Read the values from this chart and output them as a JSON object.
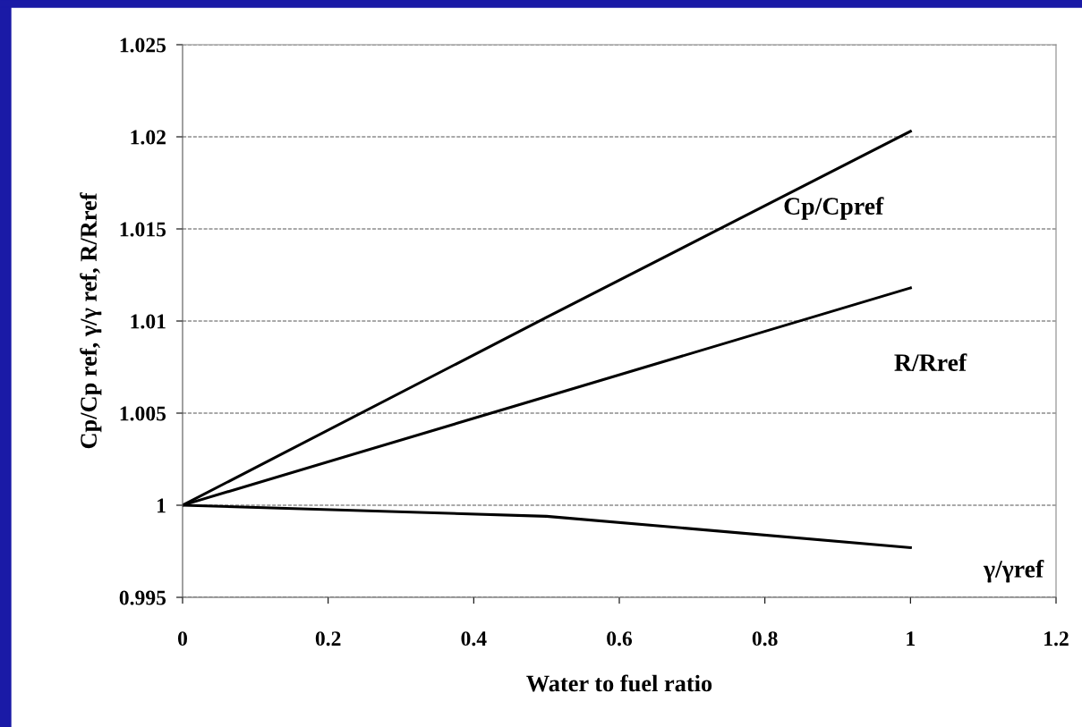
{
  "chart_data": {
    "type": "line",
    "xlabel": "Water to fuel ratio",
    "ylabel": "Cp/Cp ref, γ/γ ref, R/Rref",
    "x": [
      0,
      0.5,
      1
    ],
    "series": [
      {
        "name": "Cp/Cpref",
        "color": "#000000",
        "values": [
          1,
          1.0102,
          1.0203
        ]
      },
      {
        "name": "R/Rref",
        "color": "#000000",
        "values": [
          1,
          1.0059,
          1.0118
        ]
      },
      {
        "name": "γ/γref",
        "color": "#000000",
        "values": [
          1,
          0.9994,
          0.9977
        ]
      }
    ],
    "xlim": [
      0,
      1.2
    ],
    "xticks": [
      0,
      0.2,
      0.4,
      0.6,
      0.8,
      1,
      1.2
    ],
    "ylim": [
      0.995,
      1.025
    ],
    "yticks": [
      0.995,
      1,
      1.005,
      1.01,
      1.015,
      1.02,
      1.025
    ],
    "grid": "y",
    "line_style": "solid",
    "marker": "none",
    "legend": false
  }
}
